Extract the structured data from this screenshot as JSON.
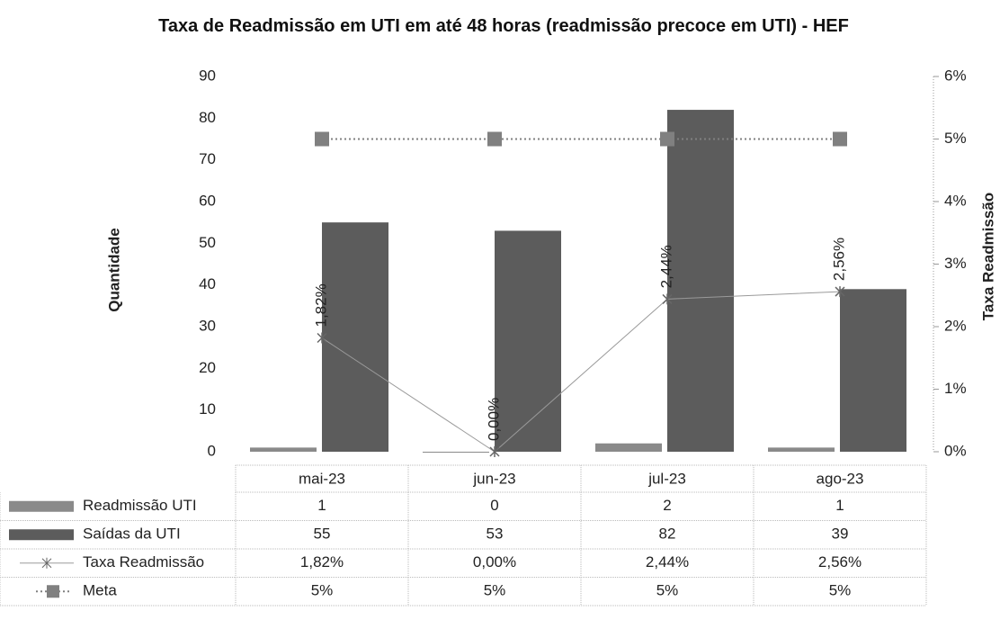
{
  "chart_data": {
    "type": "bar-line",
    "title": "Taxa de Readmissão em UTI em até 48 horas (readmissão precoce em UTI) - HEF",
    "ylabel": "Quantidade",
    "y2label": "Taxa Readmissão",
    "categories": [
      "mai-23",
      "jun-23",
      "jul-23",
      "ago-23"
    ],
    "series": [
      {
        "name": "Readmissão UTI",
        "type": "bar",
        "color": "#8a8a8a",
        "values": [
          1,
          0,
          2,
          1
        ]
      },
      {
        "name": "Saídas da UTI",
        "type": "bar",
        "color": "#5c5c5c",
        "values": [
          55,
          53,
          82,
          39
        ]
      },
      {
        "name": "Taxa Readmissão",
        "type": "line",
        "axis": "y2",
        "color": "#9a9a9a",
        "values": [
          1.82,
          0,
          2.44,
          2.56
        ],
        "value_labels": [
          "1,82%",
          "0,00%",
          "2,44%",
          "2,56%"
        ]
      },
      {
        "name": "Meta",
        "type": "line",
        "axis": "y2",
        "color": "#808080",
        "dashed": true,
        "values": [
          5,
          5,
          5,
          5
        ],
        "value_labels": [
          "5%",
          "5%",
          "5%",
          "5%"
        ]
      }
    ],
    "ylim": [
      0,
      90
    ],
    "yticks": [
      0,
      10,
      20,
      30,
      40,
      50,
      60,
      70,
      80,
      90
    ],
    "y2lim": [
      0,
      6
    ],
    "y2ticks": [
      {
        "value": 0,
        "label": "0%"
      },
      {
        "value": 1,
        "label": "1%"
      },
      {
        "value": 2,
        "label": "2%"
      },
      {
        "value": 3,
        "label": "3%"
      },
      {
        "value": 4,
        "label": "4%"
      },
      {
        "value": 5,
        "label": "5%"
      },
      {
        "value": 6,
        "label": "6%"
      }
    ],
    "data_table": true
  }
}
